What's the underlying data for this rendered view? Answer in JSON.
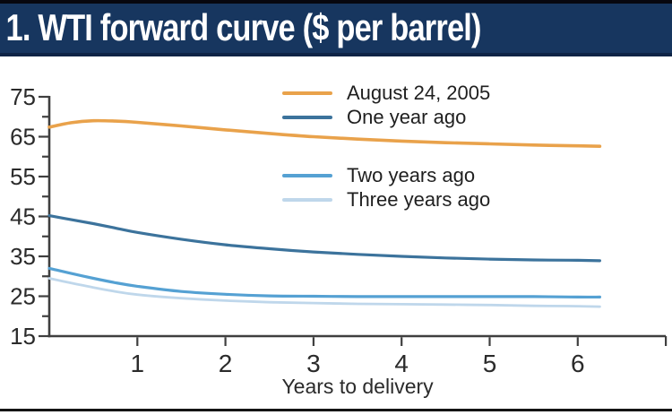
{
  "header": {
    "title": "1. WTI forward curve ($ per barrel)"
  },
  "chart_data": {
    "type": "line",
    "title": "1. WTI forward curve",
    "units": "$ per barrel",
    "xlabel": "Years to delivery",
    "x_ticks": [
      1,
      2,
      3,
      4,
      5,
      6
    ],
    "y_tick_labels": [
      15,
      25,
      35,
      45,
      55,
      65,
      75
    ],
    "y_minor_step": 5,
    "xlim": [
      0,
      7
    ],
    "ylim": [
      15,
      75
    ],
    "grid": false,
    "legend_position": "inside-top, two stacked groups",
    "x": [
      0,
      0.25,
      0.5,
      0.75,
      1,
      1.5,
      2,
      2.5,
      3,
      3.5,
      4,
      4.5,
      5,
      5.5,
      6,
      6.25
    ],
    "series": [
      {
        "name": "August 24, 2005",
        "color": "#e9a24b",
        "values": [
          67.4,
          68.5,
          69.0,
          68.9,
          68.6,
          67.7,
          66.7,
          65.8,
          65.0,
          64.4,
          63.9,
          63.5,
          63.2,
          62.9,
          62.7,
          62.6
        ]
      },
      {
        "name": "One year ago",
        "color": "#3c739c",
        "values": [
          45.2,
          44.2,
          43.2,
          42.1,
          41.0,
          39.3,
          37.9,
          36.9,
          36.1,
          35.5,
          35.0,
          34.6,
          34.3,
          34.1,
          34.0,
          33.9
        ]
      },
      {
        "name": "Two years ago",
        "color": "#55a1d3",
        "values": [
          32.0,
          30.7,
          29.5,
          28.4,
          27.5,
          26.2,
          25.5,
          25.1,
          25.0,
          24.9,
          24.9,
          24.9,
          24.9,
          24.9,
          24.8,
          24.8
        ]
      },
      {
        "name": "Three years ago",
        "color": "#bfd7eb",
        "values": [
          29.5,
          28.3,
          27.2,
          26.2,
          25.4,
          24.5,
          23.9,
          23.5,
          23.3,
          23.1,
          23.0,
          22.9,
          22.8,
          22.6,
          22.5,
          22.4
        ]
      }
    ],
    "axis_color": "#3f3f3f"
  },
  "colors": {
    "titlebar_bg": "#17365f",
    "titlebar_text": "#ffffff",
    "bottom_rule": "#141414"
  }
}
